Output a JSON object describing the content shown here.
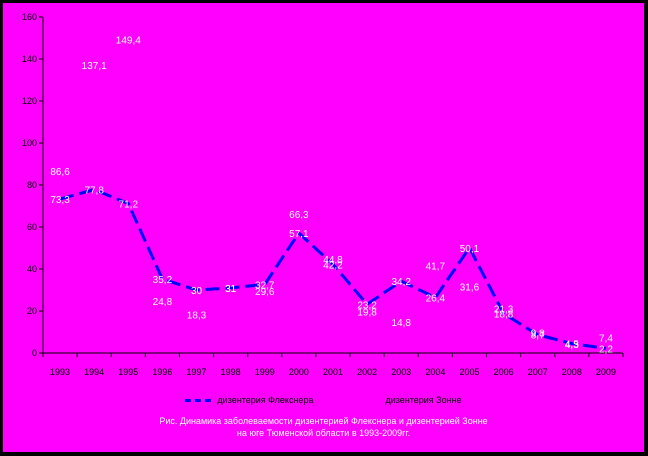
{
  "chart_data": {
    "type": "line",
    "x": [
      "1993",
      "1994",
      "1995",
      "1996",
      "1997",
      "1998",
      "1999",
      "2000",
      "2001",
      "2002",
      "2003",
      "2004",
      "2005",
      "2006",
      "2007",
      "2008",
      "2009"
    ],
    "ylim": [
      0,
      160
    ],
    "yticks": [
      0,
      20,
      40,
      60,
      80,
      100,
      120,
      140,
      160
    ],
    "grid": false,
    "legend_position": "bottom",
    "series": [
      {
        "name": "дизентерия Флекснера",
        "values": [
          73.3,
          77.8,
          71.2,
          35.2,
          30.0,
          31.0,
          32.7,
          57.1,
          42.2,
          23.2,
          34.2,
          26.4,
          50.1,
          18.8,
          8.7,
          4.5,
          2.2
        ],
        "color": "#0000ff",
        "style": "dashed"
      },
      {
        "name": "дизентерия Зонне",
        "values": [
          86.6,
          137.1,
          149.4,
          24.8,
          18.3,
          31.0,
          29.6,
          66.3,
          44.8,
          19.8,
          14.8,
          41.7,
          31.6,
          21.3,
          9.8,
          4.3,
          7.4
        ],
        "label_only": true
      }
    ],
    "data_labels": {
      "flexner": [
        "73,3",
        "77,8",
        "71,2",
        "35,2",
        "30",
        "31",
        "32,7",
        "57,1",
        "42,2",
        "23,2",
        "34,2",
        "26,4",
        "50,1",
        "18,8",
        "8,7",
        "4,5",
        "2,2"
      ],
      "sonne": [
        "86,6",
        "137,1",
        "149,4",
        "24,8",
        "18,3",
        "31",
        "29,6",
        "66,3",
        "44,8",
        "19,8",
        "14,8",
        "41,7",
        "31,6",
        "21,3",
        "9,8",
        "4,3",
        "7,4"
      ]
    }
  },
  "legend": {
    "item1": "дизентерия Флекснера",
    "item2": "дизентерия Зонне"
  },
  "caption": {
    "line1": "Рис. Динамика заболеваемости дизентерией Флекснера и дизентерией Зонне",
    "line2": "на юге Тюменской области в 1993-2009гг."
  }
}
